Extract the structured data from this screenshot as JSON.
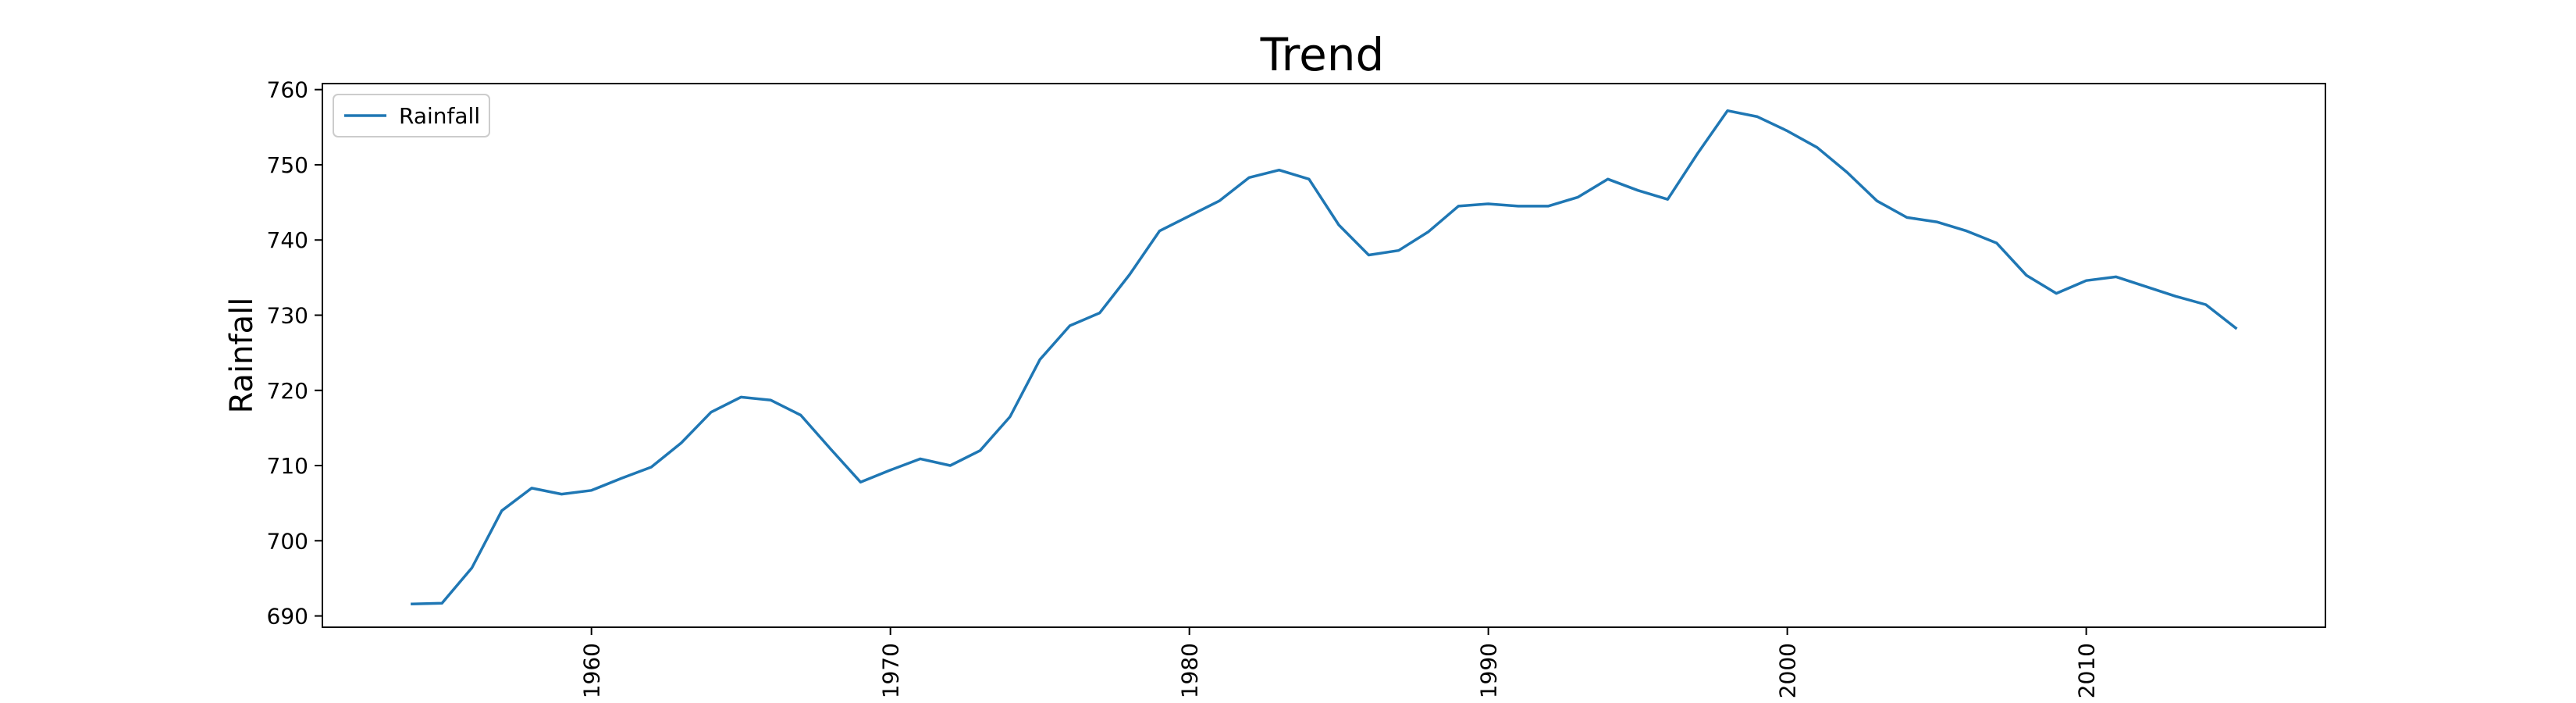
{
  "chart_data": {
    "type": "line",
    "title": "Trend",
    "xlabel": "",
    "ylabel": "Rainfall",
    "xlim": [
      1951,
      2018
    ],
    "ylim": [
      688.5,
      760.8
    ],
    "xticks": [
      1960,
      1970,
      1980,
      1990,
      2000,
      2010
    ],
    "yticks": [
      690,
      700,
      710,
      720,
      730,
      740,
      750,
      760
    ],
    "grid": false,
    "legend": {
      "position": "top-left",
      "entries": [
        "Rainfall"
      ]
    },
    "series": [
      {
        "name": "Rainfall",
        "color": "#1f77b4",
        "x": [
          1954,
          1955,
          1956,
          1957,
          1958,
          1959,
          1960,
          1961,
          1962,
          1963,
          1964,
          1965,
          1966,
          1967,
          1968,
          1969,
          1970,
          1971,
          1972,
          1973,
          1974,
          1975,
          1976,
          1977,
          1978,
          1979,
          1980,
          1981,
          1982,
          1983,
          1984,
          1985,
          1986,
          1987,
          1988,
          1989,
          1990,
          1991,
          1992,
          1993,
          1994,
          1995,
          1996,
          1997,
          1998,
          1999,
          2000,
          2001,
          2002,
          2003,
          2004,
          2005,
          2006,
          2007,
          2008,
          2009,
          2010,
          2011,
          2012,
          2013,
          2014,
          2015
        ],
        "values": [
          691.6,
          691.7,
          696.4,
          704.0,
          707.0,
          706.2,
          706.7,
          708.3,
          709.8,
          713.0,
          717.1,
          719.1,
          718.7,
          716.7,
          712.2,
          707.8,
          709.4,
          710.9,
          710.0,
          712.0,
          716.5,
          724.1,
          728.6,
          730.3,
          735.4,
          741.2,
          743.2,
          745.2,
          748.3,
          749.3,
          748.1,
          742.0,
          738.0,
          738.6,
          741.1,
          744.5,
          744.8,
          744.5,
          744.5,
          745.7,
          748.1,
          746.6,
          745.4,
          751.5,
          757.2,
          756.4,
          754.5,
          752.3,
          749.0,
          745.2,
          743.0,
          742.4,
          741.2,
          739.6,
          735.3,
          732.9,
          734.6,
          735.1,
          733.8,
          732.5,
          731.4,
          728.3
        ]
      }
    ]
  }
}
